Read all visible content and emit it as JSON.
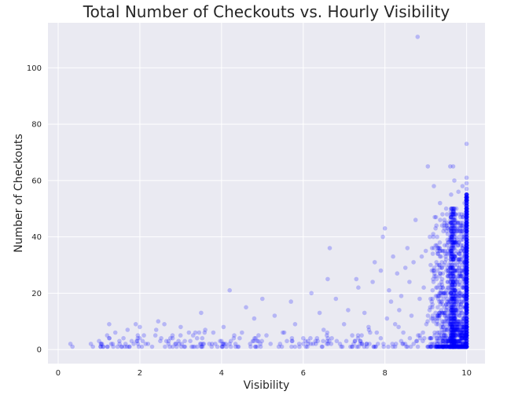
{
  "chart_data": {
    "type": "scatter",
    "title": "Total Number of Checkouts vs. Hourly Visibility",
    "xlabel": "Visibility",
    "ylabel": "Number of Checkouts",
    "xlim": [
      -0.25,
      10.45
    ],
    "ylim": [
      -5,
      116
    ],
    "xticks": [
      0,
      2,
      4,
      6,
      8,
      10
    ],
    "yticks": [
      0,
      20,
      40,
      60,
      80,
      100
    ],
    "grid": true,
    "background_color": "#eaeaf2",
    "point_color": "#0000ff",
    "points": [
      [
        0.3,
        2
      ],
      [
        0.35,
        1
      ],
      [
        0.8,
        2
      ],
      [
        0.85,
        1
      ],
      [
        1.0,
        3
      ],
      [
        1.1,
        1
      ],
      [
        1.2,
        5
      ],
      [
        1.25,
        9
      ],
      [
        1.3,
        2
      ],
      [
        1.35,
        1
      ],
      [
        1.4,
        6
      ],
      [
        1.5,
        3
      ],
      [
        1.55,
        1
      ],
      [
        1.6,
        4
      ],
      [
        1.65,
        2
      ],
      [
        1.7,
        7
      ],
      [
        1.75,
        1
      ],
      [
        1.8,
        3
      ],
      [
        1.85,
        2
      ],
      [
        1.9,
        9
      ],
      [
        1.95,
        4
      ],
      [
        2.0,
        8
      ],
      [
        2.05,
        1
      ],
      [
        2.1,
        5
      ],
      [
        2.2,
        2
      ],
      [
        2.3,
        1
      ],
      [
        2.4,
        7
      ],
      [
        2.45,
        10
      ],
      [
        2.5,
        3
      ],
      [
        2.6,
        9
      ],
      [
        2.7,
        2
      ],
      [
        2.8,
        5
      ],
      [
        2.9,
        1
      ],
      [
        3.0,
        8
      ],
      [
        3.1,
        3
      ],
      [
        3.2,
        6
      ],
      [
        3.3,
        1
      ],
      [
        3.4,
        4
      ],
      [
        3.5,
        13
      ],
      [
        3.6,
        7
      ],
      [
        3.7,
        2
      ],
      [
        3.8,
        6
      ],
      [
        3.9,
        1
      ],
      [
        4.0,
        3
      ],
      [
        4.05,
        8
      ],
      [
        4.1,
        2
      ],
      [
        4.2,
        21
      ],
      [
        4.3,
        4
      ],
      [
        4.4,
        1
      ],
      [
        4.5,
        6
      ],
      [
        4.6,
        15
      ],
      [
        4.7,
        2
      ],
      [
        4.8,
        11
      ],
      [
        4.9,
        3
      ],
      [
        5.0,
        18
      ],
      [
        5.1,
        5
      ],
      [
        5.2,
        2
      ],
      [
        5.3,
        12
      ],
      [
        5.4,
        1
      ],
      [
        5.5,
        6
      ],
      [
        5.6,
        3
      ],
      [
        5.7,
        17
      ],
      [
        5.8,
        9
      ],
      [
        5.9,
        2
      ],
      [
        6.0,
        4
      ],
      [
        6.1,
        1
      ],
      [
        6.2,
        20
      ],
      [
        6.3,
        3
      ],
      [
        6.4,
        13
      ],
      [
        6.5,
        7
      ],
      [
        6.6,
        25
      ],
      [
        6.65,
        36
      ],
      [
        6.7,
        4
      ],
      [
        6.8,
        18
      ],
      [
        6.9,
        2
      ],
      [
        7.0,
        9
      ],
      [
        7.1,
        14
      ],
      [
        7.2,
        5
      ],
      [
        7.3,
        25
      ],
      [
        7.35,
        22
      ],
      [
        7.4,
        3
      ],
      [
        7.5,
        13
      ],
      [
        7.6,
        8
      ],
      [
        7.7,
        24
      ],
      [
        7.75,
        31
      ],
      [
        7.8,
        6
      ],
      [
        7.9,
        28
      ],
      [
        7.95,
        40
      ],
      [
        8.0,
        43
      ],
      [
        8.05,
        11
      ],
      [
        8.1,
        21
      ],
      [
        8.15,
        17
      ],
      [
        8.2,
        33
      ],
      [
        8.25,
        9
      ],
      [
        8.3,
        27
      ],
      [
        8.35,
        14
      ],
      [
        8.4,
        19
      ],
      [
        8.45,
        6
      ],
      [
        8.5,
        29
      ],
      [
        8.55,
        36
      ],
      [
        8.6,
        24
      ],
      [
        8.65,
        12
      ],
      [
        8.7,
        31
      ],
      [
        8.75,
        46
      ],
      [
        8.8,
        111
      ],
      [
        8.85,
        18
      ],
      [
        8.9,
        33
      ],
      [
        8.95,
        22
      ],
      [
        9.0,
        35
      ],
      [
        9.05,
        65
      ],
      [
        9.1,
        40
      ],
      [
        9.15,
        28
      ],
      [
        9.2,
        58
      ],
      [
        9.25,
        47
      ],
      [
        9.3,
        36
      ],
      [
        9.35,
        52
      ],
      [
        9.4,
        44
      ],
      [
        9.45,
        30
      ],
      [
        9.5,
        50
      ],
      [
        9.55,
        38
      ],
      [
        9.6,
        65
      ],
      [
        9.62,
        55
      ],
      [
        9.65,
        48
      ],
      [
        9.67,
        65
      ],
      [
        9.7,
        60
      ],
      [
        9.72,
        42
      ],
      [
        9.75,
        50
      ],
      [
        9.8,
        56
      ],
      [
        9.85,
        45
      ],
      [
        9.9,
        58
      ],
      [
        9.95,
        52
      ],
      [
        10.0,
        73
      ],
      [
        10.0,
        61
      ],
      [
        10.0,
        59
      ],
      [
        10.0,
        57
      ],
      [
        10.0,
        54
      ],
      [
        10.0,
        50
      ]
    ]
  }
}
